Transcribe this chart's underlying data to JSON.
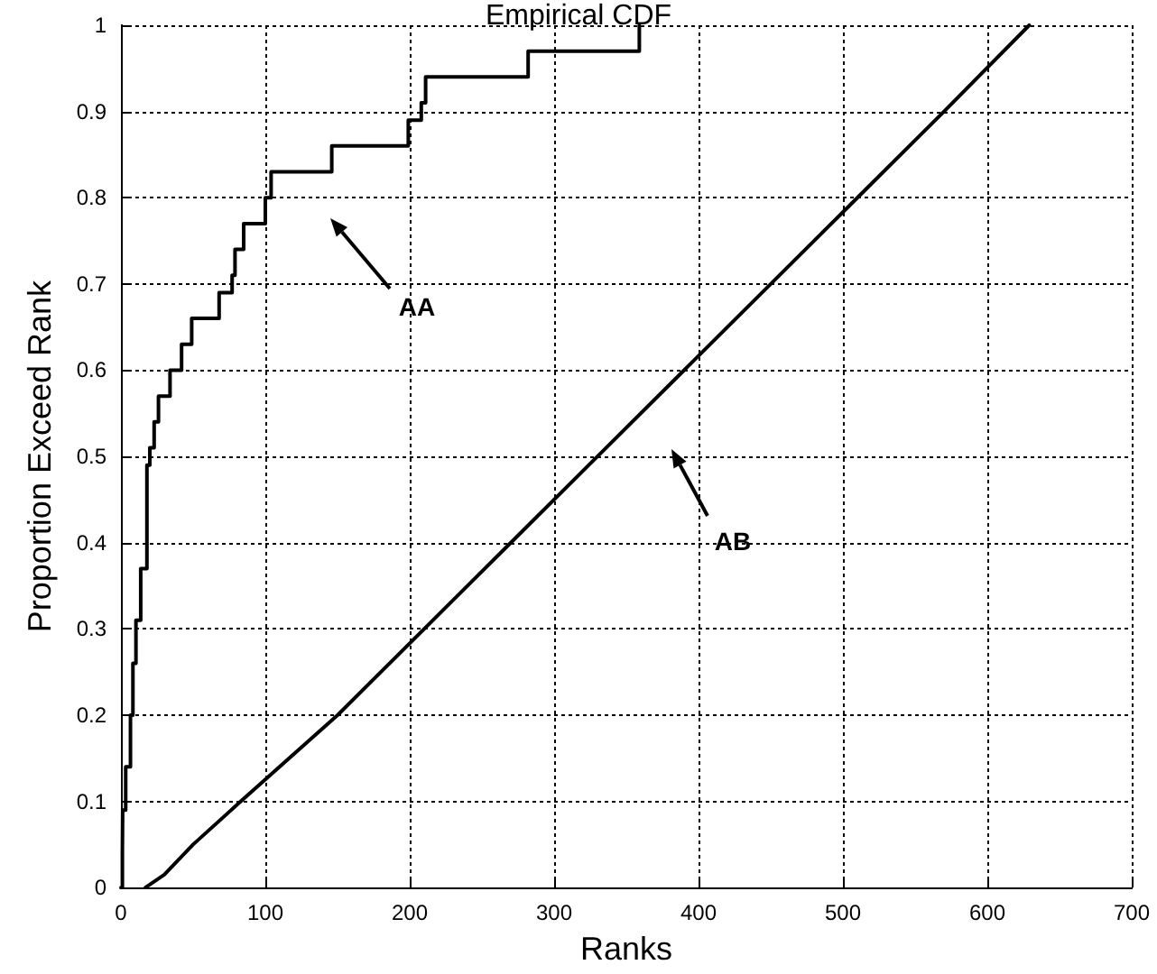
{
  "chart_data": {
    "type": "line",
    "title": "Empirical CDF",
    "xlabel": "Ranks",
    "ylabel": "Proportion Exceed Rank",
    "series": [
      {
        "type": "step",
        "color": "#000000",
        "x": [
          0,
          1,
          1.2,
          3.3,
          6.6,
          8.3,
          10.4,
          13.7,
          18,
          20,
          23,
          26,
          34,
          42,
          49,
          68,
          77,
          79,
          85,
          100,
          104,
          146,
          199,
          208,
          211,
          282,
          359
        ],
        "values": [
          0,
          0.04,
          0.09,
          0.14,
          0.2,
          0.26,
          0.31,
          0.37,
          0.49,
          0.51,
          0.54,
          0.57,
          0.6,
          0.63,
          0.66,
          0.69,
          0.71,
          0.74,
          0.77,
          0.8,
          0.83,
          0.86,
          0.89,
          0.91,
          0.94,
          0.97,
          1
        ]
      },
      {
        "color": "#000000",
        "x": [
          17,
          30,
          50,
          83,
          150,
          210,
          270,
          330,
          390,
          450,
          510,
          570,
          629
        ],
        "values": [
          0,
          0.015,
          0.05,
          0.1,
          0.2,
          0.3,
          0.4,
          0.5,
          0.6,
          0.7,
          0.8,
          0.9,
          1
        ]
      }
    ],
    "annotations": [
      "AA",
      "AB"
    ],
    "xlim": [
      0,
      700
    ],
    "xticks": [
      0,
      100,
      200,
      300,
      400,
      500,
      600,
      700
    ],
    "ylim": [
      0,
      1
    ],
    "yticks": [
      0,
      0.1,
      0.2,
      0.3,
      0.4,
      0.5,
      0.6,
      0.7,
      0.8,
      0.9,
      1
    ],
    "grid": true,
    "marker": "none",
    "line_style": "solid"
  }
}
